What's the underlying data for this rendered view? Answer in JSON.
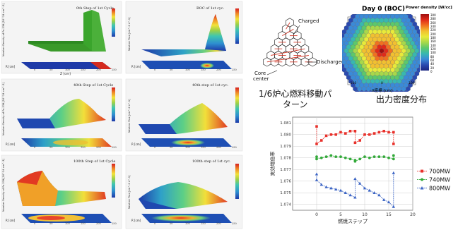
{
  "panels": [
    {
      "title": "0th Step of 1st Cycle",
      "zlabel": "Number Density of Pu-239 [10^24 cm^-3]",
      "xlabel": "Z [cm]",
      "rlabel": "R [cm]",
      "cb_ticks": [
        "1.4e-3",
        "1.3e-3",
        "1.1e-3",
        "1e-3",
        "8e-4",
        "6e-4",
        "4e-4",
        "2e-4",
        "1e-4",
        "0e+0"
      ]
    },
    {
      "title": "BOC of 1st cyc.",
      "zlabel": "Neutron Flux [cm^-2 s^-1]",
      "xlabel": "Z [cm]",
      "rlabel": "R [cm]",
      "cb_ticks": [
        "2.8e+16",
        "2.4e+16",
        "2e+16",
        "1.6e+16",
        "1.2e+16",
        "8e+15",
        "4e+15",
        "0e+0"
      ]
    },
    {
      "title": "40th Step of 1st Cycle",
      "zlabel": "Number Density of Pu-239 [10^24 cm^-3]",
      "xlabel": "Z [cm]",
      "rlabel": "R [cm]",
      "cb_ticks": [
        "1.4e-3",
        "1.2e-3",
        "1e-3",
        "8e-4",
        "6e-4",
        "4e-4",
        "2e-4",
        "0e+0"
      ]
    },
    {
      "title": "40th step of 1st cyc.",
      "zlabel": "Neutron Flux [cm^-2 s^-1]",
      "xlabel": "Z [cm]",
      "rlabel": "R [cm]",
      "cb_ticks": [
        "1.6e+16",
        "1.4e+16",
        "1.2e+16",
        "1e+16",
        "8e+15",
        "6e+15",
        "4e+15",
        "2e+15"
      ]
    },
    {
      "title": "100th Step of 1st Cycle",
      "zlabel": "Number Density of Pu-239 [10^24 cm^-3]",
      "xlabel": "Z [cm]",
      "rlabel": "R [cm]",
      "cb_ticks": [
        "1.4e-3",
        "1.2e-3",
        "1e-3",
        "8e-4",
        "6e-4",
        "4e-4",
        "2e-4",
        "0e+0"
      ]
    },
    {
      "title": "100th step of 1st cyc.",
      "zlabel": "Neutron Flux [cm^-2 s^-1]",
      "xlabel": "Z [cm]",
      "rlabel": "R [cm]",
      "cb_ticks": [
        "1.6e+16",
        "1.4e+16",
        "1.2e+16",
        "1e+16",
        "8e+15",
        "6e+15",
        "4e+15",
        "2e+15"
      ]
    }
  ],
  "xticks": [
    "0",
    "50",
    "100",
    "150",
    "200",
    "250"
  ],
  "rticks": [
    "200",
    "0",
    "-200"
  ],
  "fuel_pattern": {
    "charged": "Charged",
    "discharged": "Discharged",
    "core_center_line1": "Core",
    "core_center_line2": "center",
    "caption_line1": "1/6炉心燃料移動パ",
    "caption_line2": "ターン"
  },
  "power_map": {
    "title": "Day 0 (BOC)",
    "cb_title": "Power density [W/cc]",
    "cb_ticks": [
      "300",
      "280",
      "260",
      "240",
      "220",
      "200",
      "180",
      "160",
      "140",
      "120",
      "100",
      "80",
      "60",
      "40",
      "20",
      "0"
    ],
    "xlabel": "X座標 [cm]",
    "xticks": [
      "-100",
      "0",
      "100"
    ],
    "caption": "出力密度分布"
  },
  "chart_data": {
    "type": "line",
    "xlabel": "燃焼ステップ",
    "ylabel": "実効増倍率",
    "xlim": [
      -5,
      20
    ],
    "ylim": [
      1.0735,
      1.0815
    ],
    "xticks": [
      0,
      5,
      10,
      15,
      20
    ],
    "yticks": [
      1.074,
      1.075,
      1.076,
      1.077,
      1.078,
      1.079,
      1.08,
      1.081
    ],
    "legend_position": "right",
    "series": [
      {
        "name": "700MW",
        "color": "#e8312b",
        "marker": "square",
        "x": [
          0,
          0,
          1,
          2,
          3,
          4,
          5,
          6,
          7,
          8,
          8,
          9,
          10,
          11,
          12,
          13,
          14,
          15,
          16,
          16
        ],
        "y": [
          1.0807,
          1.0792,
          1.0795,
          1.0799,
          1.08,
          1.08,
          1.0802,
          1.0801,
          1.0803,
          1.0803,
          1.0793,
          1.0795,
          1.08,
          1.08,
          1.0801,
          1.0802,
          1.0803,
          1.0802,
          1.0802,
          1.0792
        ]
      },
      {
        "name": "740MW",
        "color": "#33aa3a",
        "marker": "circle",
        "x": [
          0,
          0,
          1,
          2,
          3,
          4,
          5,
          6,
          7,
          8,
          8,
          9,
          10,
          11,
          12,
          13,
          14,
          15,
          16,
          16
        ],
        "y": [
          1.0781,
          1.0779,
          1.078,
          1.0781,
          1.0782,
          1.0781,
          1.0781,
          1.078,
          1.0779,
          1.0778,
          1.0777,
          1.0779,
          1.0781,
          1.078,
          1.0781,
          1.0781,
          1.0781,
          1.078,
          1.0779,
          1.0782
        ]
      },
      {
        "name": "800MW",
        "color": "#3a63c4",
        "marker": "triangle",
        "x": [
          0,
          0,
          1,
          2,
          3,
          4,
          5,
          6,
          7,
          8,
          8,
          9,
          10,
          11,
          12,
          13,
          14,
          15,
          16,
          16
        ],
        "y": [
          1.0766,
          1.0761,
          1.0757,
          1.0755,
          1.0754,
          1.0753,
          1.0752,
          1.075,
          1.0748,
          1.0746,
          1.0762,
          1.0758,
          1.0754,
          1.0752,
          1.075,
          1.0748,
          1.0744,
          1.0742,
          1.0738,
          1.0767
        ]
      }
    ]
  }
}
